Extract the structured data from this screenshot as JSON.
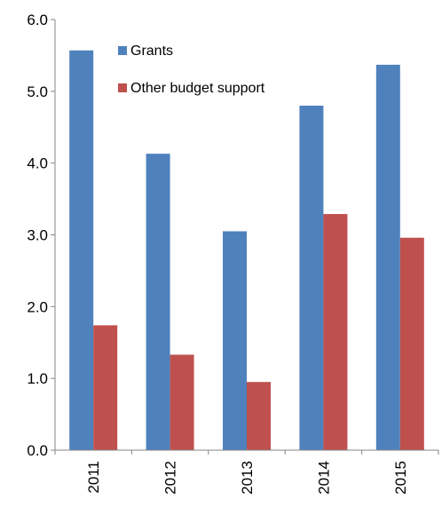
{
  "chart_data": {
    "type": "bar",
    "title": "",
    "xlabel": "",
    "ylabel": "",
    "categories": [
      "2011",
      "2012",
      "2013",
      "2014",
      "2015"
    ],
    "series": [
      {
        "name": "Grants",
        "color": "#4f81bd",
        "values": [
          5.57,
          4.13,
          3.05,
          4.8,
          5.37
        ]
      },
      {
        "name": "Other budget support",
        "color": "#c0504d",
        "values": [
          1.74,
          1.33,
          0.95,
          3.29,
          2.96
        ]
      }
    ],
    "ylim": [
      0,
      6
    ],
    "yticks": [
      "0.0",
      "1.0",
      "2.0",
      "3.0",
      "4.0",
      "5.0",
      "6.0"
    ],
    "grid": false,
    "legend_position": "top-left inside"
  }
}
